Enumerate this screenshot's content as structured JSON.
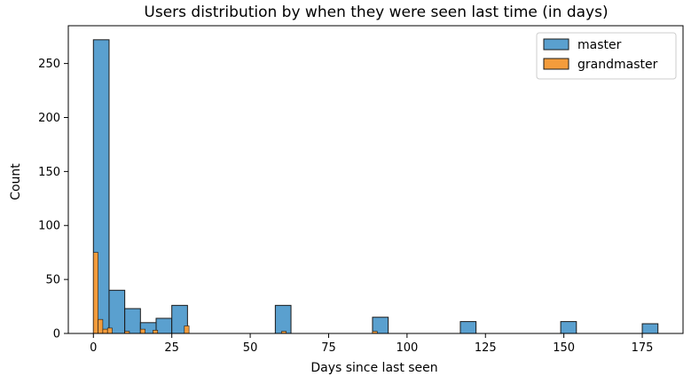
{
  "chart_data": {
    "type": "bar",
    "title": "Users distribution by when they were seen last time (in days)",
    "xlabel": "Days since last seen",
    "ylabel": "Count",
    "xlim": [
      -8,
      188
    ],
    "ylim": [
      0,
      285
    ],
    "xticks": [
      0,
      25,
      50,
      75,
      100,
      125,
      150,
      175
    ],
    "yticks": [
      0,
      50,
      100,
      150,
      200,
      250
    ],
    "grid": false,
    "legend_position": "top-right",
    "series": [
      {
        "name": "master",
        "color": "#5aa0cf",
        "edge_color": "#1a1a1a",
        "bins": [
          {
            "x0": 0,
            "x1": 5,
            "value": 272
          },
          {
            "x0": 5,
            "x1": 10,
            "value": 40
          },
          {
            "x0": 10,
            "x1": 15,
            "value": 23
          },
          {
            "x0": 15,
            "x1": 20,
            "value": 10
          },
          {
            "x0": 20,
            "x1": 25,
            "value": 14
          },
          {
            "x0": 25,
            "x1": 30,
            "value": 26
          },
          {
            "x0": 58,
            "x1": 63,
            "value": 26
          },
          {
            "x0": 89,
            "x1": 94,
            "value": 15
          },
          {
            "x0": 117,
            "x1": 122,
            "value": 11
          },
          {
            "x0": 149,
            "x1": 154,
            "value": 11
          },
          {
            "x0": 175,
            "x1": 180,
            "value": 9
          }
        ]
      },
      {
        "name": "grandmaster",
        "color": "#f39c3c",
        "edge_color": "#1a1a1a",
        "bins": [
          {
            "x0": 0,
            "x1": 1.5,
            "value": 75
          },
          {
            "x0": 1.5,
            "x1": 3,
            "value": 13
          },
          {
            "x0": 3,
            "x1": 4.5,
            "value": 4
          },
          {
            "x0": 4.5,
            "x1": 6,
            "value": 5
          },
          {
            "x0": 10,
            "x1": 11.5,
            "value": 2
          },
          {
            "x0": 15,
            "x1": 16.5,
            "value": 4
          },
          {
            "x0": 19,
            "x1": 20.5,
            "value": 3
          },
          {
            "x0": 29,
            "x1": 30.5,
            "value": 7
          },
          {
            "x0": 60,
            "x1": 61.5,
            "value": 2
          },
          {
            "x0": 89,
            "x1": 90.5,
            "value": 2
          }
        ]
      }
    ]
  }
}
